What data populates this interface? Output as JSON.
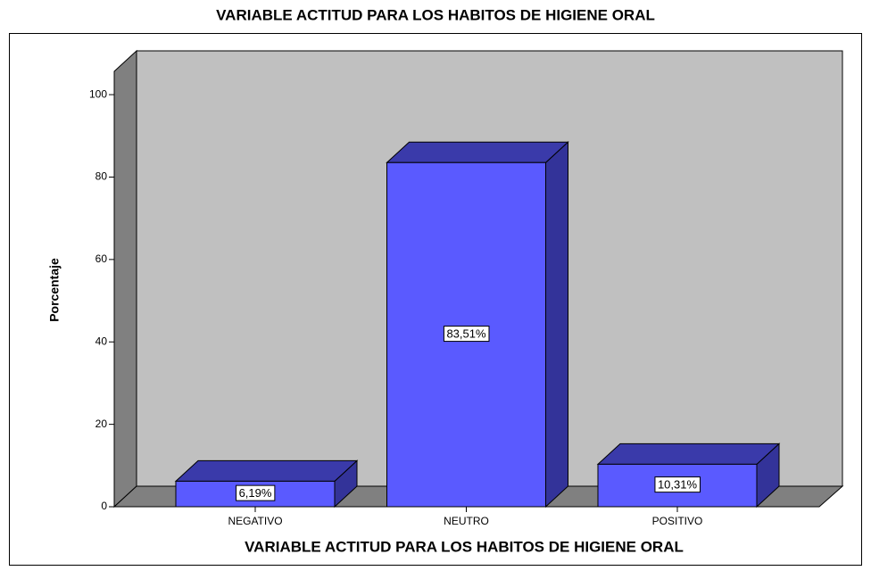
{
  "chart_data": {
    "type": "bar3d",
    "title": "VARIABLE ACTITUD PARA LOS HABITOS DE HIGIENE ORAL",
    "x_label": "VARIABLE ACTITUD PARA LOS HABITOS DE HIGIENE ORAL",
    "y_label": "Porcentaje",
    "categories": [
      "NEGATIVO",
      "NEUTRO",
      "POSITIVO"
    ],
    "values": [
      6.19,
      83.51,
      10.31
    ],
    "value_labels": [
      "6,19%",
      "83,51%",
      "10,31%"
    ],
    "color": "#5a5aff",
    "ylim": [
      0,
      105
    ],
    "yticks": [
      0,
      20,
      40,
      60,
      80,
      100
    ]
  }
}
